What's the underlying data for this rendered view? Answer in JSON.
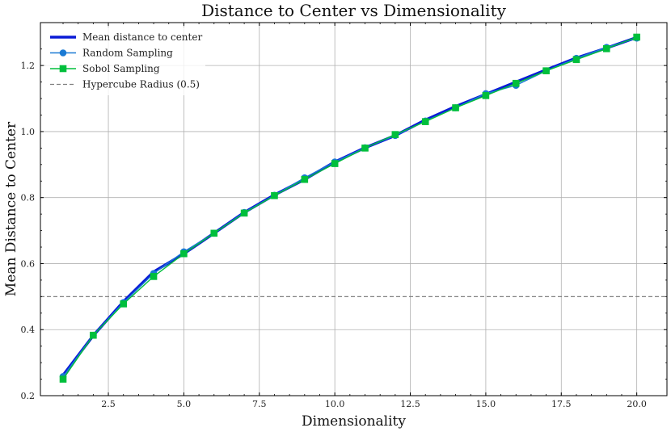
{
  "chart_data": {
    "type": "line",
    "title": "Distance to Center vs Dimensionality",
    "xlabel": "Dimensionality",
    "ylabel": "Mean Distance to Center",
    "xlim": [
      0.25,
      21.0
    ],
    "ylim": [
      0.2,
      1.33
    ],
    "xticks": [
      2.5,
      5.0,
      7.5,
      10.0,
      12.5,
      15.0,
      17.5,
      20.0
    ],
    "xtick_labels": [
      "2.5",
      "5.0",
      "7.5",
      "10.0",
      "12.5",
      "15.0",
      "17.5",
      "20.0"
    ],
    "yticks": [
      0.2,
      0.4,
      0.6,
      0.8,
      1.0,
      1.2
    ],
    "ytick_labels": [
      "0.2",
      "0.4",
      "0.6",
      "0.8",
      "1.0",
      "1.2"
    ],
    "grid": true,
    "legend_position": "top-left",
    "x": [
      1,
      2,
      3,
      4,
      5,
      6,
      7,
      8,
      9,
      10,
      11,
      12,
      13,
      14,
      15,
      16,
      17,
      18,
      19,
      20
    ],
    "series": [
      {
        "name": "Mean distance to center",
        "style": "line",
        "color": "#0a1bd6",
        "values": [
          0.262,
          0.382,
          0.485,
          0.575,
          0.63,
          0.692,
          0.755,
          0.808,
          0.855,
          0.908,
          0.951,
          0.988,
          1.035,
          1.076,
          1.113,
          1.15,
          1.187,
          1.223,
          1.253,
          1.285
        ]
      },
      {
        "name": "Random Sampling",
        "style": "line-circle",
        "color": "#1a7ad4",
        "values": [
          0.258,
          0.383,
          0.482,
          0.57,
          0.636,
          0.692,
          0.755,
          0.807,
          0.86,
          0.908,
          0.951,
          0.988,
          1.032,
          1.072,
          1.115,
          1.14,
          1.184,
          1.222,
          1.255,
          1.283
        ]
      },
      {
        "name": "Sobol Sampling",
        "style": "line-square",
        "color": "#00bf3c",
        "values": [
          0.25,
          0.383,
          0.478,
          0.561,
          0.63,
          0.692,
          0.753,
          0.806,
          0.855,
          0.903,
          0.95,
          0.991,
          1.03,
          1.072,
          1.109,
          1.146,
          1.184,
          1.218,
          1.251,
          1.286
        ]
      }
    ],
    "reference_line": {
      "name": "Hypercube Radius (0.5)",
      "y": 0.5,
      "color": "#808080",
      "style": "dashed"
    }
  }
}
